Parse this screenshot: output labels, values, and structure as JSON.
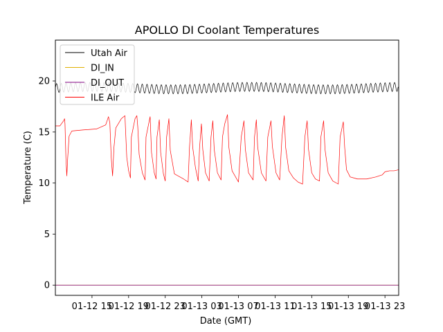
{
  "chart_data": {
    "type": "line",
    "title": "APOLLO DI Coolant Temperatures",
    "xlabel": "Date (GMT)",
    "ylabel": "Temperature (C)",
    "x_start": "01-12 11",
    "x_end": "01-13 23",
    "xlim_hours": [
      0,
      37.5
    ],
    "ylim": [
      -1,
      24
    ],
    "grid": false,
    "legend_position": "top-left",
    "x_ticks": [
      {
        "label": "01-12 15",
        "hours": 4
      },
      {
        "label": "01-12 19",
        "hours": 8
      },
      {
        "label": "01-12 23",
        "hours": 12
      },
      {
        "label": "01-13 03",
        "hours": 16
      },
      {
        "label": "01-13 07",
        "hours": 20
      },
      {
        "label": "01-13 11",
        "hours": 24
      },
      {
        "label": "01-13 15",
        "hours": 28
      },
      {
        "label": "01-13 19",
        "hours": 32
      },
      {
        "label": "01-13 23",
        "hours": 36
      }
    ],
    "y_ticks": [
      0,
      5,
      10,
      15,
      20
    ],
    "series": [
      {
        "name": "Utah Air",
        "color": "#000000",
        "kind": "oscillation",
        "mean": 19.3,
        "amplitude": 0.45,
        "period_hours": 0.52
      },
      {
        "name": "DI_IN",
        "color": "#e0b000",
        "kind": "flat",
        "value": 0.0
      },
      {
        "name": "DI_OUT",
        "color": "#800080",
        "kind": "flat",
        "value": 0.0
      },
      {
        "name": "ILE Air",
        "color": "#ff0000",
        "kind": "points",
        "points": [
          [
            0,
            15.6
          ],
          [
            0.5,
            15.6
          ],
          [
            0.9,
            16.1
          ],
          [
            1.0,
            16.3
          ],
          [
            1.05,
            15.8
          ],
          [
            1.15,
            12.5
          ],
          [
            1.25,
            10.7
          ],
          [
            1.35,
            12.5
          ],
          [
            1.5,
            14.6
          ],
          [
            1.8,
            15.1
          ],
          [
            3.0,
            15.2
          ],
          [
            4.5,
            15.3
          ],
          [
            5.5,
            15.7
          ],
          [
            5.8,
            16.5
          ],
          [
            5.95,
            15.9
          ],
          [
            6.1,
            12.5
          ],
          [
            6.25,
            10.7
          ],
          [
            6.4,
            13.5
          ],
          [
            6.6,
            15.4
          ],
          [
            7.2,
            16.3
          ],
          [
            7.6,
            16.6
          ],
          [
            7.65,
            15.5
          ],
          [
            7.8,
            12.5
          ],
          [
            8.0,
            11.2
          ],
          [
            8.2,
            10.5
          ],
          [
            8.3,
            14.5
          ],
          [
            8.7,
            16.3
          ],
          [
            8.9,
            16.6
          ],
          [
            9.0,
            15.5
          ],
          [
            9.15,
            12.8
          ],
          [
            9.5,
            11.0
          ],
          [
            9.8,
            10.3
          ],
          [
            9.9,
            14.5
          ],
          [
            10.3,
            16.3
          ],
          [
            10.35,
            16.5
          ],
          [
            10.5,
            13.0
          ],
          [
            10.8,
            11.0
          ],
          [
            11.0,
            10.4
          ],
          [
            11.1,
            14.5
          ],
          [
            11.35,
            16.2
          ],
          [
            11.5,
            13.0
          ],
          [
            11.8,
            10.9
          ],
          [
            12.0,
            10.2
          ],
          [
            12.15,
            14.5
          ],
          [
            12.4,
            16.3
          ],
          [
            12.55,
            13.2
          ],
          [
            13.0,
            10.9
          ],
          [
            14.0,
            10.4
          ],
          [
            14.5,
            10.1
          ],
          [
            14.65,
            13.5
          ],
          [
            14.85,
            16.2
          ],
          [
            15.0,
            13.5
          ],
          [
            15.3,
            11.5
          ],
          [
            15.6,
            10.2
          ],
          [
            15.75,
            13.5
          ],
          [
            15.95,
            15.8
          ],
          [
            16.1,
            13.3
          ],
          [
            16.4,
            11.0
          ],
          [
            16.8,
            10.2
          ],
          [
            17.0,
            14.5
          ],
          [
            17.2,
            16.1
          ],
          [
            17.35,
            13.3
          ],
          [
            17.7,
            11.0
          ],
          [
            18.1,
            10.3
          ],
          [
            18.25,
            14.5
          ],
          [
            18.5,
            15.8
          ],
          [
            18.8,
            16.7
          ],
          [
            18.95,
            13.5
          ],
          [
            19.3,
            11.2
          ],
          [
            20.0,
            10.1
          ],
          [
            20.3,
            14.5
          ],
          [
            20.6,
            16.1
          ],
          [
            20.75,
            13.3
          ],
          [
            21.1,
            11.0
          ],
          [
            21.6,
            10.3
          ],
          [
            21.75,
            14.5
          ],
          [
            21.95,
            16.2
          ],
          [
            22.1,
            13.5
          ],
          [
            22.5,
            11.0
          ],
          [
            23.0,
            10.2
          ],
          [
            23.2,
            14.5
          ],
          [
            23.55,
            16.1
          ],
          [
            23.7,
            13.6
          ],
          [
            24.1,
            11.0
          ],
          [
            24.5,
            10.3
          ],
          [
            24.75,
            14.5
          ],
          [
            25.0,
            16.6
          ],
          [
            25.15,
            13.5
          ],
          [
            25.5,
            11.2
          ],
          [
            26.0,
            10.5
          ],
          [
            26.5,
            10.1
          ],
          [
            27.0,
            9.9
          ],
          [
            27.25,
            14.5
          ],
          [
            27.5,
            16.1
          ],
          [
            27.65,
            13.3
          ],
          [
            28.0,
            11.0
          ],
          [
            28.4,
            10.4
          ],
          [
            28.85,
            10.2
          ],
          [
            29.0,
            14.5
          ],
          [
            29.3,
            16.1
          ],
          [
            29.45,
            13.3
          ],
          [
            29.8,
            11.0
          ],
          [
            30.3,
            10.2
          ],
          [
            30.9,
            9.9
          ],
          [
            31.1,
            14.5
          ],
          [
            31.45,
            16.0
          ],
          [
            31.6,
            13.5
          ],
          [
            31.8,
            11.3
          ],
          [
            32.2,
            10.6
          ],
          [
            33.0,
            10.4
          ],
          [
            34.0,
            10.4
          ],
          [
            35.0,
            10.6
          ],
          [
            35.7,
            10.8
          ],
          [
            36.0,
            11.1
          ],
          [
            36.5,
            11.2
          ],
          [
            37.0,
            11.2
          ],
          [
            37.5,
            11.3
          ]
        ]
      }
    ]
  }
}
